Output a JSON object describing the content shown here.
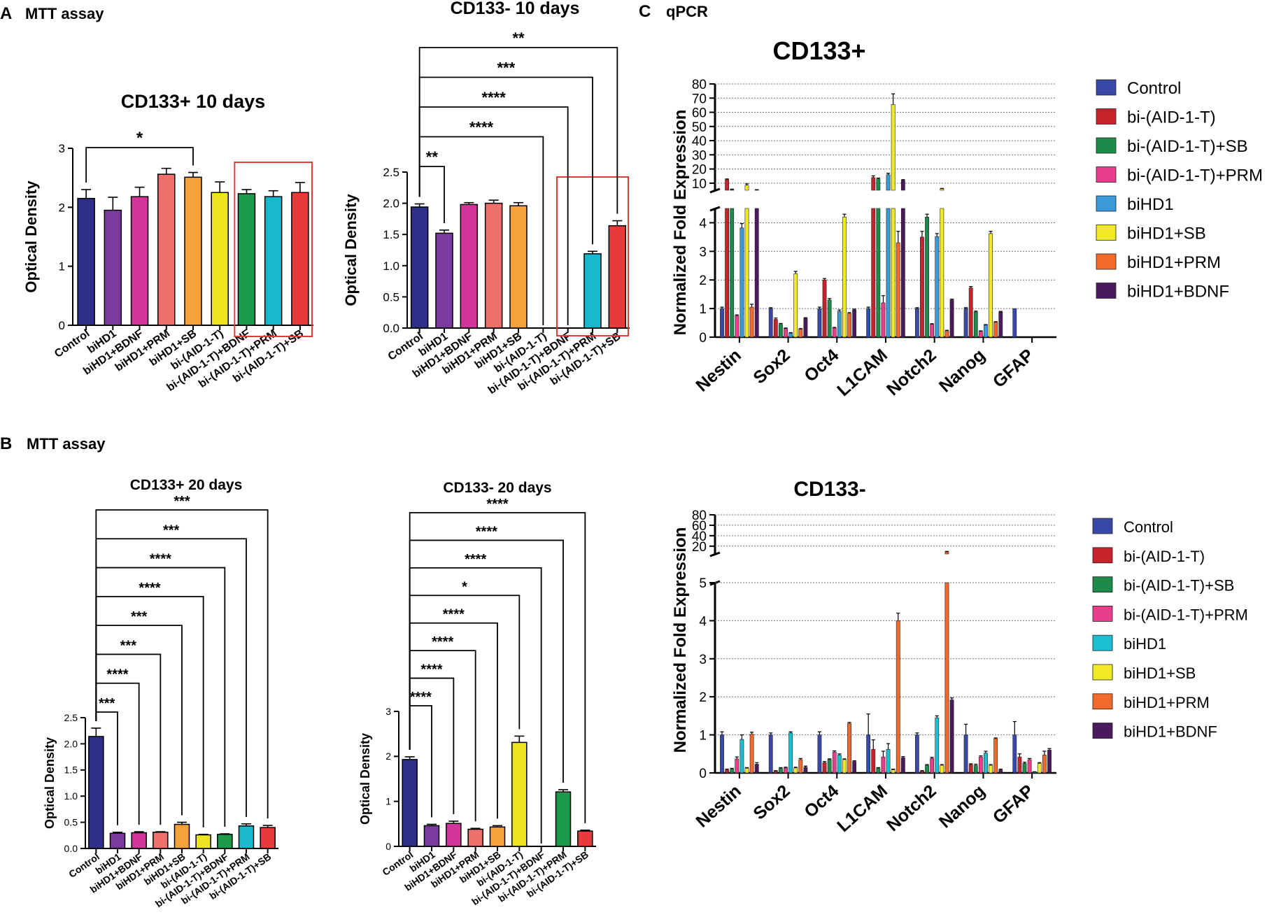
{
  "panel_labels": {
    "A": {
      "letter": "A",
      "text": "MTT assay"
    },
    "B": {
      "letter": "B",
      "text": "MTT assay"
    },
    "C": {
      "letter": "C",
      "text": "qPCR"
    }
  },
  "colors": {
    "navy": "#2e2f86",
    "purple": "#7b3b9e",
    "magenta": "#d2349a",
    "salmon": "#ef6f6c",
    "orange": "#f7a13b",
    "yellow": "#ece51e",
    "green": "#1a9a4a",
    "cyan": "#18b9cf",
    "red": "#e83a3a",
    "q_blue": "#3a49a8",
    "q_red": "#c8232c",
    "q_green": "#1d8a49",
    "q_pink": "#ea3d8c",
    "q_lightblue": "#3a9bd8",
    "q_cyan": "#1bbfd0",
    "q_yellow": "#f2ea27",
    "q_orange": "#f26a2b",
    "q_darkpurple": "#4a1a5c",
    "highlight_box": "#e03a3a"
  },
  "chart_data": [
    {
      "id": "A1",
      "type": "bar",
      "title": "CD133+ 10 days",
      "ylabel": "Optical Density",
      "xlabel": "",
      "ylim": [
        0,
        3
      ],
      "yticks": [
        0,
        1,
        2,
        3
      ],
      "categories": [
        "Control",
        "biHD1",
        "biHD1+BDNF",
        "biHD1+PRM",
        "biHD1+SB",
        "bi-(AID-1-T)",
        "bi-(AID-1-T)+BDNF",
        "bi-(AID-1-T)+PRM",
        "bi-(AID-1-T)+SB"
      ],
      "values": [
        2.15,
        1.95,
        2.18,
        2.56,
        2.51,
        2.25,
        2.23,
        2.18,
        2.25
      ],
      "errors": [
        0.15,
        0.22,
        0.16,
        0.1,
        0.08,
        0.18,
        0.07,
        0.1,
        0.17
      ],
      "colors": [
        "navy",
        "purple",
        "magenta",
        "salmon",
        "orange",
        "yellow",
        "green",
        "cyan",
        "red"
      ],
      "significance": [
        {
          "from": 0,
          "to": 4,
          "label": "*"
        }
      ],
      "highlight": {
        "from": 6,
        "to": 8
      }
    },
    {
      "id": "A2",
      "type": "bar",
      "title": "CD133- 10 days",
      "ylabel": "Optical Density",
      "xlabel": "",
      "ylim": [
        0,
        2.5
      ],
      "yticks": [
        0.0,
        0.5,
        1.0,
        1.5,
        2.0,
        2.5
      ],
      "categories": [
        "Control",
        "biHD1",
        "biHD1+BDNF",
        "biHD1+PRM",
        "biHD1+SB",
        "bi-(AID-1-T)",
        "bi-(AID-1-T)+BDNF",
        "bi-(AID-1-T)+PRM",
        "bi-(AID-1-T)+SB"
      ],
      "values": [
        1.94,
        1.52,
        1.98,
        2.0,
        1.96,
        0,
        0,
        1.19,
        1.64
      ],
      "errors": [
        0.05,
        0.05,
        0.03,
        0.05,
        0.05,
        0,
        0,
        0.04,
        0.08
      ],
      "colors": [
        "navy",
        "purple",
        "magenta",
        "salmon",
        "orange",
        "yellow",
        "green",
        "cyan",
        "red"
      ],
      "significance": [
        {
          "from": 0,
          "to": 1,
          "label": "**"
        },
        {
          "from": 0,
          "to": 5,
          "label": "****"
        },
        {
          "from": 0,
          "to": 6,
          "label": "****"
        },
        {
          "from": 0,
          "to": 7,
          "label": "***"
        },
        {
          "from": 0,
          "to": 8,
          "label": "**"
        }
      ],
      "highlight": {
        "from": 6,
        "to": 8
      }
    },
    {
      "id": "B1",
      "type": "bar",
      "title": "CD133+ 20 days",
      "ylabel": "Optical Density",
      "xlabel": "",
      "ylim": [
        0,
        2.5
      ],
      "yticks": [
        0.0,
        0.5,
        1.0,
        1.5,
        2.0,
        2.5
      ],
      "categories": [
        "Control",
        "biHD1",
        "biHD1+BDNF",
        "biHD1+PRM",
        "biHD1+SB",
        "bi-(AID-1-T)",
        "bi-(AID-1-T)+BDNF",
        "bi-(AID-1-T)+PRM",
        "bi-(AID-1-T)+SB"
      ],
      "values": [
        2.14,
        0.29,
        0.3,
        0.31,
        0.46,
        0.26,
        0.27,
        0.43,
        0.4
      ],
      "errors": [
        0.16,
        0.02,
        0.02,
        0.01,
        0.04,
        0.01,
        0.01,
        0.04,
        0.04
      ],
      "colors": [
        "navy",
        "purple",
        "magenta",
        "salmon",
        "orange",
        "yellow",
        "green",
        "cyan",
        "red"
      ],
      "significance": [
        {
          "from": 0,
          "to": 1,
          "label": "***"
        },
        {
          "from": 0,
          "to": 2,
          "label": "****"
        },
        {
          "from": 0,
          "to": 3,
          "label": "***"
        },
        {
          "from": 0,
          "to": 4,
          "label": "***"
        },
        {
          "from": 0,
          "to": 5,
          "label": "****"
        },
        {
          "from": 0,
          "to": 6,
          "label": "****"
        },
        {
          "from": 0,
          "to": 7,
          "label": "***"
        },
        {
          "from": 0,
          "to": 8,
          "label": "***"
        }
      ]
    },
    {
      "id": "B2",
      "type": "bar",
      "title": "CD133- 20 days",
      "ylabel": "Optical Density",
      "xlabel": "",
      "ylim": [
        0,
        3
      ],
      "yticks": [
        0,
        1,
        2,
        3
      ],
      "categories": [
        "Control",
        "biHD1",
        "biHD1+BDNF",
        "biHD1+PRM",
        "biHD1+SB",
        "bi-(AID-1-T)",
        "bi-(AID-1-T)+BDNF",
        "bi-(AID-1-T)+PRM",
        "bi-(AID-1-T)+SB"
      ],
      "values": [
        1.93,
        0.46,
        0.51,
        0.38,
        0.43,
        2.31,
        0,
        1.21,
        0.34
      ],
      "errors": [
        0.06,
        0.03,
        0.05,
        0.02,
        0.03,
        0.14,
        0,
        0.05,
        0.02
      ],
      "colors": [
        "navy",
        "purple",
        "magenta",
        "salmon",
        "orange",
        "yellow",
        "green",
        "green",
        "red"
      ],
      "significance": [
        {
          "from": 0,
          "to": 1,
          "label": "****"
        },
        {
          "from": 0,
          "to": 2,
          "label": "****"
        },
        {
          "from": 0,
          "to": 3,
          "label": "****"
        },
        {
          "from": 0,
          "to": 4,
          "label": "****"
        },
        {
          "from": 0,
          "to": 5,
          "label": "*"
        },
        {
          "from": 0,
          "to": 6,
          "label": "****"
        },
        {
          "from": 0,
          "to": 7,
          "label": "****"
        },
        {
          "from": 0,
          "to": 8,
          "label": "****"
        }
      ]
    },
    {
      "id": "C1",
      "type": "bar",
      "title": "CD133+",
      "ylabel": "Normalized Fold Expression",
      "xlabel": "",
      "broken_axis": true,
      "lower_range": [
        0,
        4.5
      ],
      "lower_ticks": [
        0,
        1,
        2,
        3,
        4
      ],
      "upper_range": [
        5,
        80
      ],
      "upper_ticks": [
        10,
        20,
        30,
        40,
        50,
        60,
        70,
        80
      ],
      "categories": [
        "Nestin",
        "Sox2",
        "Oct4",
        "L1CAM",
        "Notch2",
        "Nanog",
        "GFAP"
      ],
      "series": [
        {
          "name": "Control",
          "color": "q_blue",
          "values": [
            1.0,
            1.0,
            1.0,
            1.0,
            1.0,
            1.0,
            1.0
          ],
          "errors": [
            0.05,
            0.03,
            0.05,
            0.05,
            0.03,
            0.03,
            0
          ]
        },
        {
          "name": "bi-(AID-1-T)",
          "color": "q_red",
          "values": [
            12.5,
            0.62,
            2.0,
            14.0,
            3.5,
            1.72,
            0
          ],
          "errors": [
            0.5,
            0.05,
            0.05,
            1.2,
            0.2,
            0.05,
            0
          ]
        },
        {
          "name": "bi-(AID-1-T)+SB",
          "color": "q_green",
          "values": [
            5.5,
            0.45,
            1.3,
            13.0,
            4.2,
            0.88,
            0
          ],
          "errors": [
            0.3,
            0.03,
            0.05,
            0.6,
            0.1,
            0.03,
            0
          ]
        },
        {
          "name": "bi-(AID-1-T)+PRM",
          "color": "q_pink",
          "values": [
            0.75,
            0.3,
            0.32,
            1.2,
            0.45,
            0.2,
            0
          ],
          "errors": [
            0.03,
            0.02,
            0.02,
            0.25,
            0.02,
            0.02,
            0
          ]
        },
        {
          "name": "biHD1",
          "color": "q_lightblue",
          "values": [
            3.82,
            0.14,
            0.9,
            16.0,
            3.52,
            0.42,
            0
          ],
          "errors": [
            0.15,
            0.02,
            0.05,
            1.0,
            0.1,
            0.02,
            0
          ]
        },
        {
          "name": "biHD1+SB",
          "color": "q_yellow",
          "values": [
            8.5,
            2.22,
            4.2,
            65.5,
            6.0,
            3.62,
            0
          ],
          "errors": [
            1.0,
            0.08,
            0.1,
            7.5,
            0.3,
            0.08,
            0
          ]
        },
        {
          "name": "biHD1+PRM",
          "color": "q_orange",
          "values": [
            1.05,
            0.28,
            0.83,
            3.3,
            0.22,
            0.52,
            0
          ],
          "errors": [
            0.1,
            0.02,
            0.03,
            0.4,
            0.02,
            0.02,
            0
          ]
        },
        {
          "name": "biHD1+BDNF",
          "color": "q_darkpurple",
          "values": [
            5.2,
            0.66,
            0.95,
            12.0,
            1.3,
            0.88,
            0
          ],
          "errors": [
            0.2,
            0.02,
            0.03,
            0.5,
            0.03,
            0.02,
            0
          ]
        }
      ]
    },
    {
      "id": "C2",
      "type": "bar",
      "title": "CD133-",
      "ylabel": "Normalized Fold Expression",
      "xlabel": "",
      "broken_axis": true,
      "lower_range": [
        0,
        5
      ],
      "lower_ticks": [
        0,
        1,
        2,
        3,
        4,
        5
      ],
      "upper_range": [
        5,
        80
      ],
      "upper_ticks": [
        20,
        40,
        60,
        80
      ],
      "categories": [
        "Nestin",
        "Sox2",
        "Oct4",
        "L1CAM",
        "Notch2",
        "Nanog",
        "GFAP"
      ],
      "series": [
        {
          "name": "Control",
          "color": "q_blue",
          "values": [
            1.0,
            1.0,
            1.0,
            1.0,
            1.0,
            1.0,
            1.0
          ],
          "errors": [
            0.08,
            0.05,
            0.08,
            0.55,
            0.05,
            0.28,
            0.35
          ]
        },
        {
          "name": "bi-(AID-1-T)",
          "color": "q_red",
          "values": [
            0.08,
            0.05,
            0.27,
            0.62,
            0.05,
            0.22,
            0.42
          ],
          "errors": [
            0.02,
            0.01,
            0.03,
            0.25,
            0.01,
            0.02,
            0.08
          ]
        },
        {
          "name": "bi-(AID-1-T)+SB",
          "color": "q_green",
          "values": [
            0.1,
            0.12,
            0.35,
            0.12,
            0.2,
            0.2,
            0.25
          ],
          "errors": [
            0.02,
            0.02,
            0.02,
            0.02,
            0.02,
            0.03,
            0.03
          ]
        },
        {
          "name": "bi-(AID-1-T)+PRM",
          "color": "q_pink",
          "values": [
            0.37,
            0.13,
            0.55,
            0.42,
            0.38,
            0.42,
            0.35
          ],
          "errors": [
            0.05,
            0.02,
            0.03,
            0.15,
            0.03,
            0.03,
            0.03
          ]
        },
        {
          "name": "biHD1",
          "color": "q_cyan",
          "values": [
            0.88,
            1.05,
            0.47,
            0.62,
            1.45,
            0.52,
            0.02
          ],
          "errors": [
            0.12,
            0.03,
            0.03,
            0.15,
            0.05,
            0.05,
            0.01
          ]
        },
        {
          "name": "biHD1+SB",
          "color": "q_yellow",
          "values": [
            0.12,
            0.13,
            0.35,
            0.08,
            0.2,
            0.2,
            0.25
          ],
          "errors": [
            0.02,
            0.02,
            0.02,
            0.02,
            0.02,
            0.02,
            0.02
          ]
        },
        {
          "name": "biHD1+PRM",
          "color": "q_orange",
          "values": [
            1.02,
            0.35,
            1.3,
            4.0,
            9.0,
            0.9,
            0.47
          ],
          "errors": [
            0.05,
            0.03,
            0.03,
            0.2,
            1.0,
            0.02,
            0.1
          ]
        },
        {
          "name": "biHD1+BDNF",
          "color": "q_darkpurple",
          "values": [
            0.23,
            0.15,
            0.3,
            0.4,
            1.92,
            0.08,
            0.6
          ],
          "errors": [
            0.04,
            0.03,
            0.02,
            0.03,
            0.05,
            0.02,
            0.04
          ]
        }
      ]
    }
  ]
}
